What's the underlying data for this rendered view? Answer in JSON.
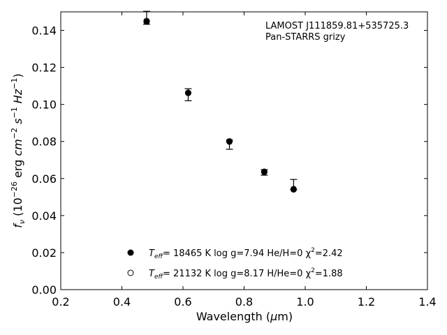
{
  "chart_data": {
    "type": "scatter",
    "annotation": [
      "LAMOST J111859.81+535725.3",
      "Pan-STARRS grizy"
    ],
    "xlabel": "Wavelength (μm)",
    "ylabel": "f_ν (10^-26 erg cm^-2 s^-1 Hz^-1)",
    "xlim": [
      0.2,
      1.4
    ],
    "ylim": [
      0.0,
      0.15
    ],
    "xticks": [
      "0.2",
      "0.4",
      "0.6",
      "0.8",
      "1.0",
      "1.2",
      "1.4"
    ],
    "yticks": [
      "0.00",
      "0.02",
      "0.04",
      "0.06",
      "0.08",
      "0.10",
      "0.12",
      "0.14"
    ],
    "observed": {
      "x": [
        0.481,
        0.617,
        0.752,
        0.866,
        0.962
      ],
      "y": [
        0.1448,
        0.1055,
        0.0793,
        0.0633,
        0.0545
      ],
      "yerr_low": [
        0.0015,
        0.0035,
        0.0035,
        0.0015,
        0.0005
      ],
      "yerr_high": [
        0.0055,
        0.003,
        0.0015,
        0.0015,
        0.005
      ]
    },
    "series": [
      {
        "name": "T_eff= 18465 K  log g=7.94  He/H=0  χ²=2.42",
        "marker": "filled-circle",
        "x": [
          0.481,
          0.617,
          0.752,
          0.866,
          0.962
        ],
        "y": [
          0.1447,
          0.1062,
          0.0799,
          0.0635,
          0.0541
        ]
      },
      {
        "name": "T_eff= 21132 K  log g=8.17  H/He=0  χ²=1.88",
        "marker": "open-circle",
        "x": [
          0.481,
          0.617,
          0.752,
          0.866,
          0.962
        ],
        "y": [
          0.1451,
          0.1063,
          0.0801,
          0.0637,
          0.0543
        ]
      }
    ],
    "legend": {
      "position": "lower-center",
      "entries": [
        {
          "prefix": "T",
          "sub": "eff",
          "text": "= 18465 K  log g=7.94  He/H=0  χ",
          "sup": "2",
          "suffix": "=2.42"
        },
        {
          "prefix": "T",
          "sub": "eff",
          "text": "= 21132 K  log g=8.17  H/He=0  χ",
          "sup": "2",
          "suffix": "=1.88"
        }
      ]
    },
    "grid": false
  }
}
